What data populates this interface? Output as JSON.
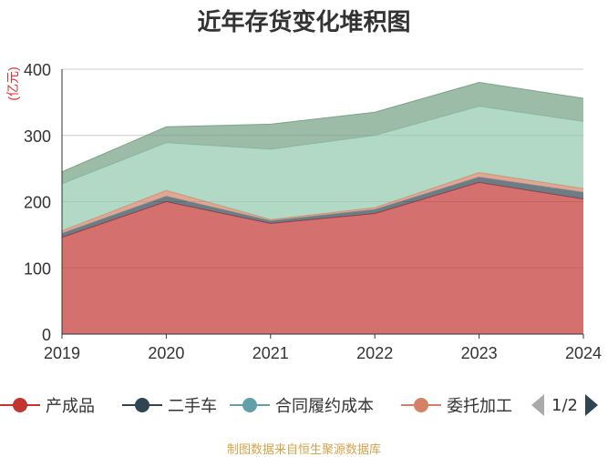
{
  "title": "近年存货变化堆积图",
  "unit_label": "(亿元)",
  "source_note": "制图数据来自恒生聚源数据库",
  "pager": "1/2",
  "legend": [
    {
      "name": "产成品",
      "color": "#c23531"
    },
    {
      "name": "二手车",
      "color": "#2f4554"
    },
    {
      "name": "合同履约成本",
      "color": "#61a0a8"
    },
    {
      "name": "委托加工",
      "color": "#d48265"
    }
  ],
  "chart_data": {
    "type": "area",
    "stacked": true,
    "title": "近年存货变化堆积图",
    "ylabel": "(亿元)",
    "x": [
      "2019",
      "2020",
      "2021",
      "2022",
      "2023",
      "2024"
    ],
    "ylim": [
      0,
      400
    ],
    "yticks": [
      0,
      100,
      200,
      300,
      400
    ],
    "grid": true,
    "series": [
      {
        "name": "产成品",
        "color": "#c23531",
        "values": [
          146,
          200,
          167,
          182,
          229,
          204
        ]
      },
      {
        "name": "二手车",
        "color": "#2f4554",
        "values": [
          6,
          8,
          4,
          6,
          8,
          10
        ]
      },
      {
        "name": "合同履约成本",
        "color": "#61a0a8",
        "values": [
          0,
          0,
          0,
          0,
          0,
          0
        ]
      },
      {
        "name": "委托加工",
        "color": "#d48265",
        "values": [
          4,
          9,
          2,
          3,
          7,
          6
        ]
      },
      {
        "color": "#91c7ae",
        "values": [
          71,
          72,
          106,
          109,
          100,
          101
        ]
      },
      {
        "color": "#749f83",
        "values": [
          18,
          24,
          38,
          35,
          36,
          35
        ]
      }
    ]
  }
}
